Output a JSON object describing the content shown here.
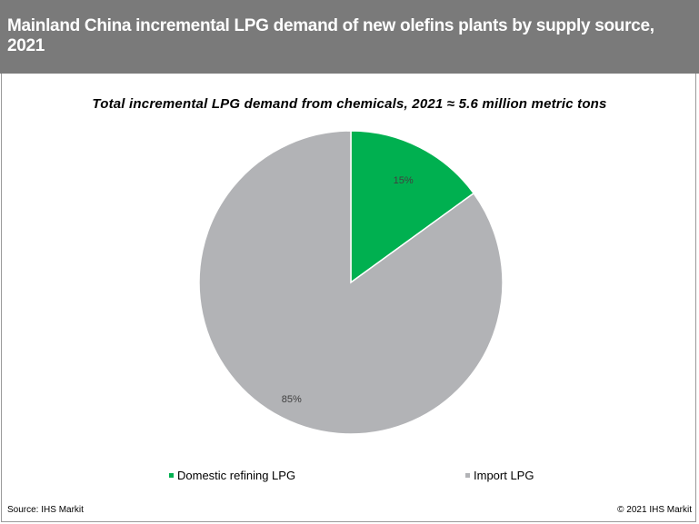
{
  "header": {
    "title": "Mainland China incremental LPG demand of new olefins plants by supply source, 2021"
  },
  "chart_data": {
    "type": "pie",
    "title": "Total incremental LPG demand from chemicals, 2021 ≈ 5.6 million metric tons",
    "categories": [
      "Domestic refining LPG",
      "Import LPG"
    ],
    "values": [
      15,
      85
    ],
    "data_labels": [
      "15%",
      "85%"
    ],
    "colors": [
      "#00b050",
      "#b2b3b6"
    ],
    "legend_placement": "bottom"
  },
  "footer": {
    "source": "Source: IHS Markit",
    "copyright": "© 2021 IHS Markit"
  }
}
